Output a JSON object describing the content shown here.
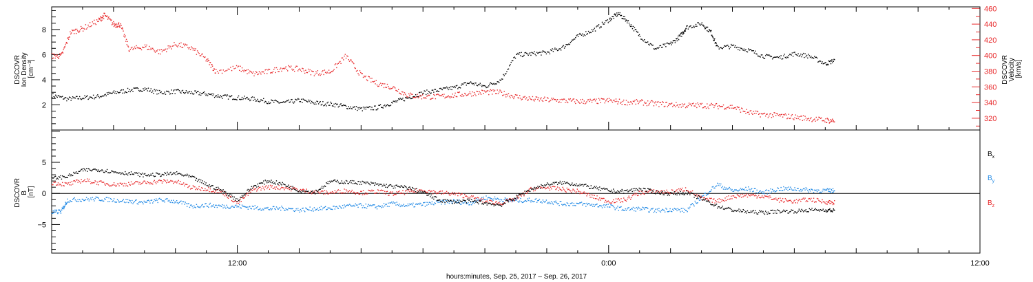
{
  "colors": {
    "black": "#000000",
    "red": "#e8292b",
    "blue": "#1e88e5"
  },
  "x_axis": {
    "title": "hours:minutes, Sep. 25, 2017 – Sep. 26, 2017",
    "range_hours": [
      0,
      30
    ],
    "tick_labels": [
      {
        "hour": 6,
        "label": "12:00"
      },
      {
        "hour": 18,
        "label": "0:00"
      },
      {
        "hour": 30,
        "label": "12:00"
      }
    ]
  },
  "chart_data": [
    {
      "type": "scatter",
      "panel": "plasma",
      "ylabel_left": [
        "DSCOVR",
        "Ion Density",
        "[cm⁻³]"
      ],
      "ylabel_right": [
        "DSCOVR",
        "Velocity",
        "[km/s]"
      ],
      "ylim_left": [
        0.0,
        9.8
      ],
      "ylim_right": [
        305,
        462
      ],
      "left_ticks": [
        2,
        4,
        6,
        8
      ],
      "right_ticks": [
        320,
        340,
        360,
        380,
        400,
        420,
        440,
        460
      ],
      "series": [
        {
          "axis": "left",
          "color": "black",
          "points": [
            [
              0,
              2.8
            ],
            [
              0.5,
              2.5
            ],
            [
              1,
              2.6
            ],
            [
              1.5,
              2.7
            ],
            [
              2,
              3.0
            ],
            [
              2.5,
              3.2
            ],
            [
              3,
              3.3
            ],
            [
              3.5,
              3.0
            ],
            [
              4,
              3.1
            ],
            [
              4.5,
              3.0
            ],
            [
              5,
              2.9
            ],
            [
              5.5,
              2.7
            ],
            [
              6,
              2.6
            ],
            [
              6.5,
              2.5
            ],
            [
              7,
              2.3
            ],
            [
              7.5,
              2.2
            ],
            [
              8,
              2.4
            ],
            [
              8.5,
              2.2
            ],
            [
              9,
              2.1
            ],
            [
              9.5,
              1.9
            ],
            [
              10,
              1.7
            ],
            [
              10.5,
              1.8
            ],
            [
              11,
              2.2
            ],
            [
              11.5,
              2.6
            ],
            [
              12,
              3.0
            ],
            [
              12.5,
              3.2
            ],
            [
              13,
              3.4
            ],
            [
              13.5,
              3.8
            ],
            [
              14,
              3.5
            ],
            [
              14.5,
              4.0
            ],
            [
              15,
              6.0
            ],
            [
              15.5,
              6.1
            ],
            [
              16,
              6.2
            ],
            [
              16.5,
              6.6
            ],
            [
              17,
              7.5
            ],
            [
              17.5,
              8.0
            ],
            [
              18,
              8.8
            ],
            [
              18.3,
              9.3
            ],
            [
              18.6,
              8.7
            ],
            [
              19,
              7.5
            ],
            [
              19.5,
              6.5
            ],
            [
              20,
              6.9
            ],
            [
              20.3,
              7.5
            ],
            [
              20.5,
              8.2
            ],
            [
              21,
              8.5
            ],
            [
              21.3,
              7.8
            ],
            [
              21.5,
              6.6
            ],
            [
              22,
              6.7
            ],
            [
              22.5,
              6.4
            ],
            [
              23,
              5.9
            ],
            [
              23.5,
              5.8
            ],
            [
              24,
              6.1
            ],
            [
              24.5,
              5.9
            ],
            [
              25,
              5.3
            ],
            [
              25.3,
              5.6
            ]
          ]
        },
        {
          "axis": "right",
          "color": "red",
          "points": [
            [
              0,
              400
            ],
            [
              0.3,
              400
            ],
            [
              0.6,
              430
            ],
            [
              1,
              435
            ],
            [
              1.5,
              445
            ],
            [
              1.7,
              452
            ],
            [
              2,
              440
            ],
            [
              2.2,
              440
            ],
            [
              2.5,
              408
            ],
            [
              3,
              412
            ],
            [
              3.5,
              405
            ],
            [
              4,
              415
            ],
            [
              4.5,
              410
            ],
            [
              5,
              395
            ],
            [
              5.3,
              380
            ],
            [
              6,
              385
            ],
            [
              6.5,
              377
            ],
            [
              7,
              380
            ],
            [
              7.5,
              385
            ],
            [
              8,
              383
            ],
            [
              8.5,
              378
            ],
            [
              9,
              380
            ],
            [
              9.5,
              400
            ],
            [
              10,
              375
            ],
            [
              10.5,
              365
            ],
            [
              11,
              360
            ],
            [
              11.5,
              350
            ],
            [
              12,
              348
            ],
            [
              12.5,
              348
            ],
            [
              13,
              350
            ],
            [
              13.5,
              352
            ],
            [
              14,
              354
            ],
            [
              14.5,
              353
            ],
            [
              15,
              348
            ],
            [
              15.5,
              345
            ],
            [
              16,
              344
            ],
            [
              16.5,
              343
            ],
            [
              17,
              342
            ],
            [
              17.5,
              342
            ],
            [
              18,
              343
            ],
            [
              18.5,
              341
            ],
            [
              19,
              341
            ],
            [
              19.5,
              339
            ],
            [
              20,
              338
            ],
            [
              20.5,
              337
            ],
            [
              21,
              337
            ],
            [
              21.5,
              336
            ],
            [
              22,
              335
            ],
            [
              22.5,
              328
            ],
            [
              23,
              325
            ],
            [
              23.5,
              324
            ],
            [
              24,
              322
            ],
            [
              24.5,
              320
            ],
            [
              25,
              318
            ],
            [
              25.3,
              317
            ]
          ]
        }
      ]
    },
    {
      "type": "scatter",
      "panel": "magnetic",
      "ylabel": [
        "DSCOVR",
        "B",
        "[nT]"
      ],
      "ylim": [
        -9.6,
        10.2
      ],
      "yticks": [
        -5,
        0,
        5
      ],
      "tick_labels": [
        "−5",
        "0",
        "5"
      ],
      "series": [
        {
          "label": "B",
          "subscript": "x",
          "color": "black",
          "points": [
            [
              0,
              2.5
            ],
            [
              0.5,
              2.8
            ],
            [
              1,
              3.8
            ],
            [
              1.5,
              3.9
            ],
            [
              2,
              3.5
            ],
            [
              2.5,
              3.3
            ],
            [
              3,
              3.0
            ],
            [
              3.5,
              3.1
            ],
            [
              4,
              3.3
            ],
            [
              4.5,
              2.7
            ],
            [
              5,
              1.5
            ],
            [
              5.5,
              0.5
            ],
            [
              6,
              -1.0
            ],
            [
              6.5,
              1.2
            ],
            [
              7,
              2.1
            ],
            [
              7.5,
              1.5
            ],
            [
              8,
              0.5
            ],
            [
              8.5,
              0.3
            ],
            [
              9,
              2.0
            ],
            [
              9.5,
              1.9
            ],
            [
              10,
              1.8
            ],
            [
              10.5,
              1.5
            ],
            [
              11,
              1.2
            ],
            [
              11.5,
              1.0
            ],
            [
              12,
              0.2
            ],
            [
              12.5,
              -1.0
            ],
            [
              13,
              -1.3
            ],
            [
              13.5,
              -1.1
            ],
            [
              14,
              -1.5
            ],
            [
              14.5,
              -1.8
            ],
            [
              15,
              -0.5
            ],
            [
              15.5,
              0.8
            ],
            [
              16,
              1.5
            ],
            [
              16.5,
              1.8
            ],
            [
              17,
              1.5
            ],
            [
              17.5,
              1.0
            ],
            [
              18,
              0.5
            ],
            [
              18.5,
              0.4
            ],
            [
              19,
              0.8
            ],
            [
              19.5,
              0.3
            ],
            [
              20,
              0.0
            ],
            [
              20.5,
              0.2
            ],
            [
              21,
              -0.8
            ],
            [
              21.5,
              -2.0
            ],
            [
              22,
              -2.6
            ],
            [
              22.5,
              -2.9
            ],
            [
              23,
              -3.0
            ],
            [
              23.5,
              -2.8
            ],
            [
              24,
              -2.8
            ],
            [
              24.5,
              -2.6
            ],
            [
              25,
              -2.6
            ],
            [
              25.3,
              -2.7
            ]
          ]
        },
        {
          "label": "B",
          "subscript": "y",
          "color": "blue",
          "points": [
            [
              0,
              -3.0
            ],
            [
              0.3,
              -2.8
            ],
            [
              0.5,
              -1.0
            ],
            [
              1,
              -0.9
            ],
            [
              1.5,
              -0.8
            ],
            [
              2,
              -1.0
            ],
            [
              2.5,
              -1.2
            ],
            [
              3,
              -1.4
            ],
            [
              3.5,
              -1.0
            ],
            [
              4,
              -1.2
            ],
            [
              4.5,
              -2.0
            ],
            [
              5,
              -1.8
            ],
            [
              5.5,
              -2.0
            ],
            [
              6,
              -2.0
            ],
            [
              6.5,
              -2.2
            ],
            [
              7,
              -2.4
            ],
            [
              7.5,
              -2.3
            ],
            [
              8,
              -2.6
            ],
            [
              8.5,
              -2.4
            ],
            [
              9,
              -2.3
            ],
            [
              9.5,
              -2.0
            ],
            [
              10,
              -1.9
            ],
            [
              10.5,
              -2.1
            ],
            [
              11,
              -1.6
            ],
            [
              11.5,
              -1.9
            ],
            [
              12,
              -1.7
            ],
            [
              12.5,
              -1.4
            ],
            [
              13,
              -1.2
            ],
            [
              13.5,
              -1.5
            ],
            [
              14,
              -0.6
            ],
            [
              14.5,
              -0.9
            ],
            [
              15,
              -1.1
            ],
            [
              15.5,
              -1.0
            ],
            [
              16,
              -1.2
            ],
            [
              16.5,
              -1.6
            ],
            [
              17,
              -1.6
            ],
            [
              17.5,
              -1.8
            ],
            [
              18,
              -2.0
            ],
            [
              18.5,
              -2.5
            ],
            [
              19,
              -2.4
            ],
            [
              19.5,
              -2.7
            ],
            [
              20,
              -2.5
            ],
            [
              20.5,
              -2.7
            ],
            [
              21,
              -0.5
            ],
            [
              21.5,
              1.5
            ],
            [
              22,
              0.5
            ],
            [
              22.5,
              0.8
            ],
            [
              23,
              0.2
            ],
            [
              23.5,
              0.8
            ],
            [
              24,
              0.8
            ],
            [
              24.5,
              0.6
            ],
            [
              25,
              0.5
            ],
            [
              25.3,
              0.5
            ]
          ]
        },
        {
          "label": "B",
          "subscript": "z",
          "color": "red",
          "points": [
            [
              0,
              1.8
            ],
            [
              0.5,
              1.5
            ],
            [
              1,
              2.2
            ],
            [
              1.5,
              1.8
            ],
            [
              2,
              1.5
            ],
            [
              2.5,
              1.6
            ],
            [
              3,
              1.8
            ],
            [
              3.5,
              2.0
            ],
            [
              4,
              2.0
            ],
            [
              4.5,
              1.0
            ],
            [
              5,
              0.8
            ],
            [
              5.5,
              0.3
            ],
            [
              6,
              -1.5
            ],
            [
              6.5,
              0.7
            ],
            [
              7,
              1.1
            ],
            [
              7.5,
              1.0
            ],
            [
              8,
              0.6
            ],
            [
              8.5,
              0.3
            ],
            [
              9,
              0.2
            ],
            [
              9.5,
              0.5
            ],
            [
              10,
              0.2
            ],
            [
              10.5,
              0.4
            ],
            [
              11,
              0.0
            ],
            [
              11.5,
              0.3
            ],
            [
              12,
              0.6
            ],
            [
              12.5,
              0.2
            ],
            [
              13,
              0.0
            ],
            [
              13.5,
              -0.5
            ],
            [
              14,
              -1.2
            ],
            [
              14.5,
              -1.5
            ],
            [
              15,
              -0.8
            ],
            [
              15.5,
              0.8
            ],
            [
              16,
              1.0
            ],
            [
              16.5,
              0.7
            ],
            [
              17,
              0.4
            ],
            [
              17.5,
              -0.5
            ],
            [
              18,
              -1.2
            ],
            [
              18.5,
              -1.0
            ],
            [
              19,
              0.2
            ],
            [
              19.5,
              0.4
            ],
            [
              20,
              0.3
            ],
            [
              20.5,
              0.8
            ],
            [
              21,
              -0.8
            ],
            [
              21.5,
              -1.2
            ],
            [
              22,
              -0.4
            ],
            [
              22.5,
              -0.2
            ],
            [
              23,
              -0.4
            ],
            [
              23.5,
              -1.0
            ],
            [
              24,
              -1.2
            ],
            [
              24.5,
              -0.9
            ],
            [
              25,
              -1.3
            ],
            [
              25.3,
              -1.4
            ]
          ]
        }
      ]
    }
  ]
}
